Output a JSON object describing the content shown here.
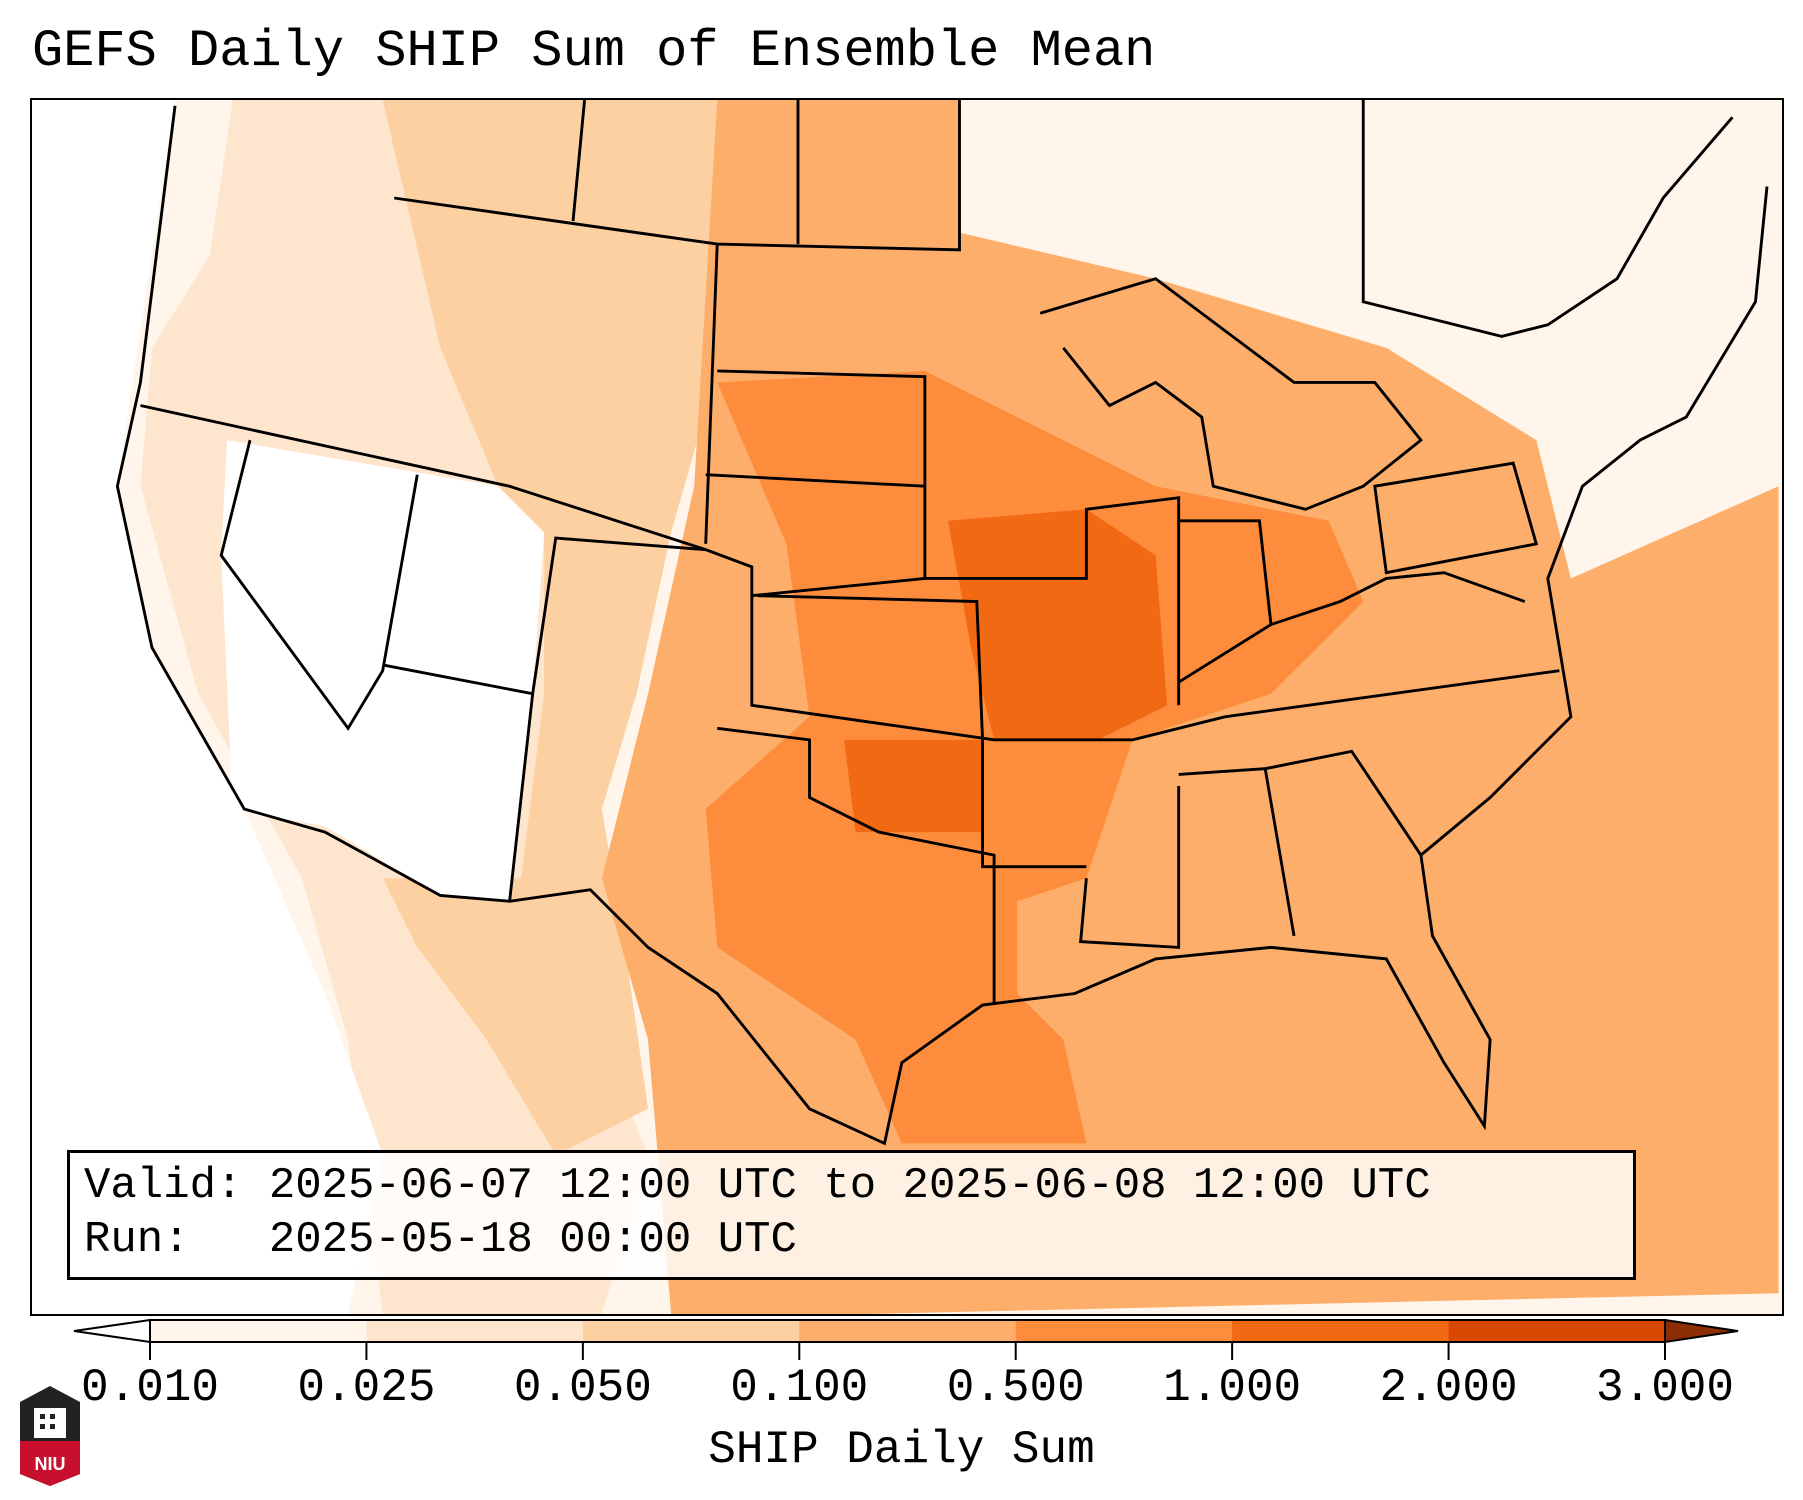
{
  "title": "GEFS Daily SHIP Sum of Ensemble Mean",
  "info_box": {
    "valid": "Valid: 2025-06-07 12:00 UTC to 2025-06-08 12:00 UTC",
    "run": "Run:   2025-05-18 00:00 UTC"
  },
  "logo_text": "NIU",
  "chart_data": {
    "type": "heatmap",
    "title": "GEFS Daily SHIP Sum of Ensemble Mean",
    "colorbar": {
      "label": "SHIP Daily Sum",
      "ticks": [
        "0.010",
        "0.025",
        "0.050",
        "0.100",
        "0.500",
        "1.000",
        "2.000",
        "3.000"
      ],
      "bins": [
        {
          "range": [
            0.01,
            0.025
          ],
          "color": "#fff5eb"
        },
        {
          "range": [
            0.025,
            0.05
          ],
          "color": "#fee6ce"
        },
        {
          "range": [
            0.05,
            0.1
          ],
          "color": "#fdd0a2"
        },
        {
          "range": [
            0.1,
            0.5
          ],
          "color": "#fdae6b"
        },
        {
          "range": [
            0.5,
            1.0
          ],
          "color": "#fd8d3c"
        },
        {
          "range": [
            1.0,
            2.0
          ],
          "color": "#f16913"
        },
        {
          "range": [
            2.0,
            3.0
          ],
          "color": "#d94801"
        }
      ],
      "under_color": "#ffffff",
      "over_color": "#8c2d04",
      "extend": "both"
    },
    "region": "Contiguous United States",
    "summary": "Highest values (1-2) over Missouri, Illinois, Oklahoma; 0.5-1 across central Plains, Mississippi valley and western Gulf; near zero over Great Basin and Southwest"
  }
}
